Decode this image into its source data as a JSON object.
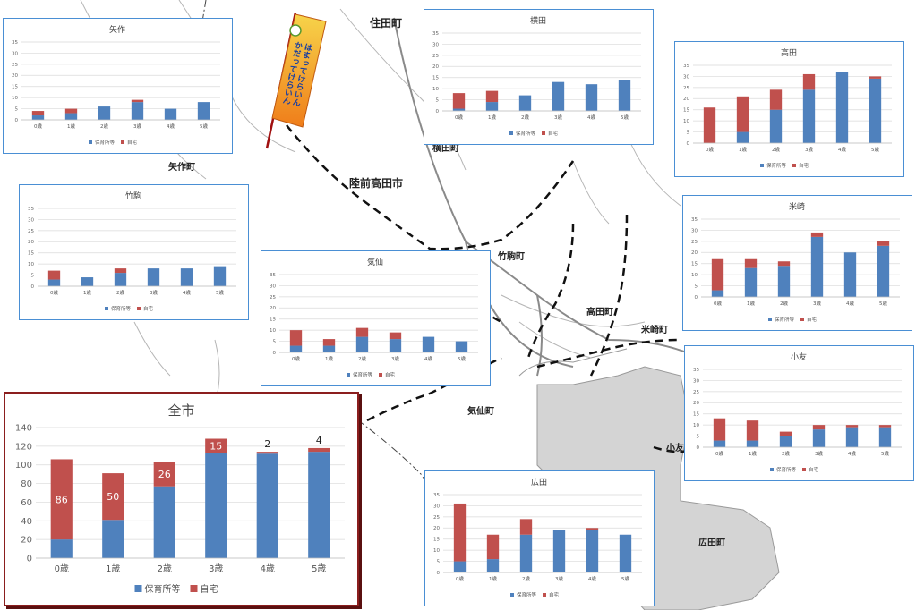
{
  "map": {
    "towns": {
      "sumita": "住田町",
      "yahagi": "矢作町",
      "yokota": "横田町",
      "rikuzentakata": "陸前高田市",
      "takekoma": "竹駒町",
      "takata": "高田町",
      "yonesaki": "米崎町",
      "kesen": "気仙町",
      "otomo": "小友",
      "hirota": "広田町"
    }
  },
  "banner": {
    "line1": "はまってけらいん",
    "line2": "かだってけらいん"
  },
  "colors": {
    "nursery": "#4f81bd",
    "home": "#c0504d",
    "frame": "#4a8fd4",
    "main_frame": "#8b1e1e"
  },
  "legend": {
    "nursery": "保育所等",
    "home": "自宅"
  },
  "chart_data": [
    {
      "id": "yahagi",
      "title": "矢作",
      "type": "bar",
      "stacked": true,
      "categories": [
        "0歳",
        "1歳",
        "2歳",
        "3歳",
        "4歳",
        "5歳"
      ],
      "series": [
        {
          "name": "保育所等",
          "values": [
            2,
            3,
            6,
            8,
            5,
            8
          ]
        },
        {
          "name": "自宅",
          "values": [
            2,
            2,
            0,
            1,
            0,
            0
          ]
        }
      ],
      "ylim": [
        0,
        35
      ],
      "yticks": [
        0,
        5,
        10,
        15,
        20,
        25,
        30,
        35
      ],
      "legend": "bottom"
    },
    {
      "id": "yokota",
      "title": "横田",
      "type": "bar",
      "stacked": true,
      "categories": [
        "0歳",
        "1歳",
        "2歳",
        "3歳",
        "4歳",
        "5歳"
      ],
      "series": [
        {
          "name": "保育所等",
          "values": [
            1,
            4,
            7,
            13,
            12,
            14
          ]
        },
        {
          "name": "自宅",
          "values": [
            7,
            5,
            0,
            0,
            0,
            0
          ]
        }
      ],
      "ylim": [
        0,
        35
      ],
      "yticks": [
        0,
        5,
        10,
        15,
        20,
        25,
        30,
        35
      ],
      "legend": "bottom"
    },
    {
      "id": "takata",
      "title": "高田",
      "type": "bar",
      "stacked": true,
      "categories": [
        "0歳",
        "1歳",
        "2歳",
        "3歳",
        "4歳",
        "5歳"
      ],
      "series": [
        {
          "name": "保育所等",
          "values": [
            0,
            5,
            15,
            24,
            32,
            29
          ]
        },
        {
          "name": "自宅",
          "values": [
            16,
            16,
            9,
            7,
            0,
            1
          ]
        }
      ],
      "ylim": [
        0,
        35
      ],
      "yticks": [
        0,
        5,
        10,
        15,
        20,
        25,
        30,
        35
      ],
      "legend": "bottom"
    },
    {
      "id": "takekoma",
      "title": "竹駒",
      "type": "bar",
      "stacked": true,
      "categories": [
        "0歳",
        "1歳",
        "2歳",
        "3歳",
        "4歳",
        "5歳"
      ],
      "series": [
        {
          "name": "保育所等",
          "values": [
            3,
            4,
            6,
            8,
            8,
            9
          ]
        },
        {
          "name": "自宅",
          "values": [
            4,
            0,
            2,
            0,
            0,
            0
          ]
        }
      ],
      "ylim": [
        0,
        35
      ],
      "yticks": [
        0,
        5,
        10,
        15,
        20,
        25,
        30,
        35
      ],
      "legend": "bottom"
    },
    {
      "id": "kesen",
      "title": "気仙",
      "type": "bar",
      "stacked": true,
      "categories": [
        "0歳",
        "1歳",
        "2歳",
        "3歳",
        "4歳",
        "5歳"
      ],
      "series": [
        {
          "name": "保育所等",
          "values": [
            3,
            3,
            7,
            6,
            7,
            5
          ]
        },
        {
          "name": "自宅",
          "values": [
            7,
            3,
            4,
            3,
            0,
            0
          ]
        }
      ],
      "ylim": [
        0,
        35
      ],
      "yticks": [
        0,
        5,
        10,
        15,
        20,
        25,
        30,
        35
      ],
      "legend": "bottom"
    },
    {
      "id": "yonesaki",
      "title": "米崎",
      "type": "bar",
      "stacked": true,
      "categories": [
        "0歳",
        "1歳",
        "2歳",
        "3歳",
        "4歳",
        "5歳"
      ],
      "series": [
        {
          "name": "保育所等",
          "values": [
            3,
            13,
            14,
            27,
            20,
            23
          ]
        },
        {
          "name": "自宅",
          "values": [
            14,
            4,
            2,
            2,
            0,
            2
          ]
        }
      ],
      "ylim": [
        0,
        35
      ],
      "yticks": [
        0,
        5,
        10,
        15,
        20,
        25,
        30,
        35
      ],
      "legend": "bottom"
    },
    {
      "id": "otomo",
      "title": "小友",
      "type": "bar",
      "stacked": true,
      "categories": [
        "0歳",
        "1歳",
        "2歳",
        "3歳",
        "4歳",
        "5歳"
      ],
      "series": [
        {
          "name": "保育所等",
          "values": [
            3,
            3,
            5,
            8,
            9,
            9
          ]
        },
        {
          "name": "自宅",
          "values": [
            10,
            9,
            2,
            2,
            1,
            1
          ]
        }
      ],
      "ylim": [
        0,
        35
      ],
      "yticks": [
        0,
        5,
        10,
        15,
        20,
        25,
        30,
        35
      ],
      "legend": "bottom"
    },
    {
      "id": "zenshi",
      "title": "全市",
      "type": "bar",
      "stacked": true,
      "categories": [
        "0歳",
        "1歳",
        "2歳",
        "3歳",
        "4歳",
        "5歳"
      ],
      "series": [
        {
          "name": "保育所等",
          "values": [
            20,
            41,
            77,
            113,
            112,
            114
          ]
        },
        {
          "name": "自宅",
          "values": [
            86,
            50,
            26,
            15,
            2,
            4
          ]
        }
      ],
      "data_labels": [
        "86",
        "50",
        "26",
        "15",
        "2",
        "4"
      ],
      "ylim": [
        0,
        140
      ],
      "yticks": [
        0,
        20,
        40,
        60,
        80,
        100,
        120,
        140
      ],
      "legend": "bottom"
    },
    {
      "id": "hirota",
      "title": "広田",
      "type": "bar",
      "stacked": true,
      "categories": [
        "0歳",
        "1歳",
        "2歳",
        "3歳",
        "4歳",
        "5歳"
      ],
      "series": [
        {
          "name": "保育所等",
          "values": [
            5,
            6,
            17,
            19,
            19,
            17
          ]
        },
        {
          "name": "自宅",
          "values": [
            26,
            11,
            7,
            0,
            1,
            0
          ]
        }
      ],
      "ylim": [
        0,
        35
      ],
      "yticks": [
        0,
        5,
        10,
        15,
        20,
        25,
        30,
        35
      ],
      "legend": "bottom"
    }
  ]
}
